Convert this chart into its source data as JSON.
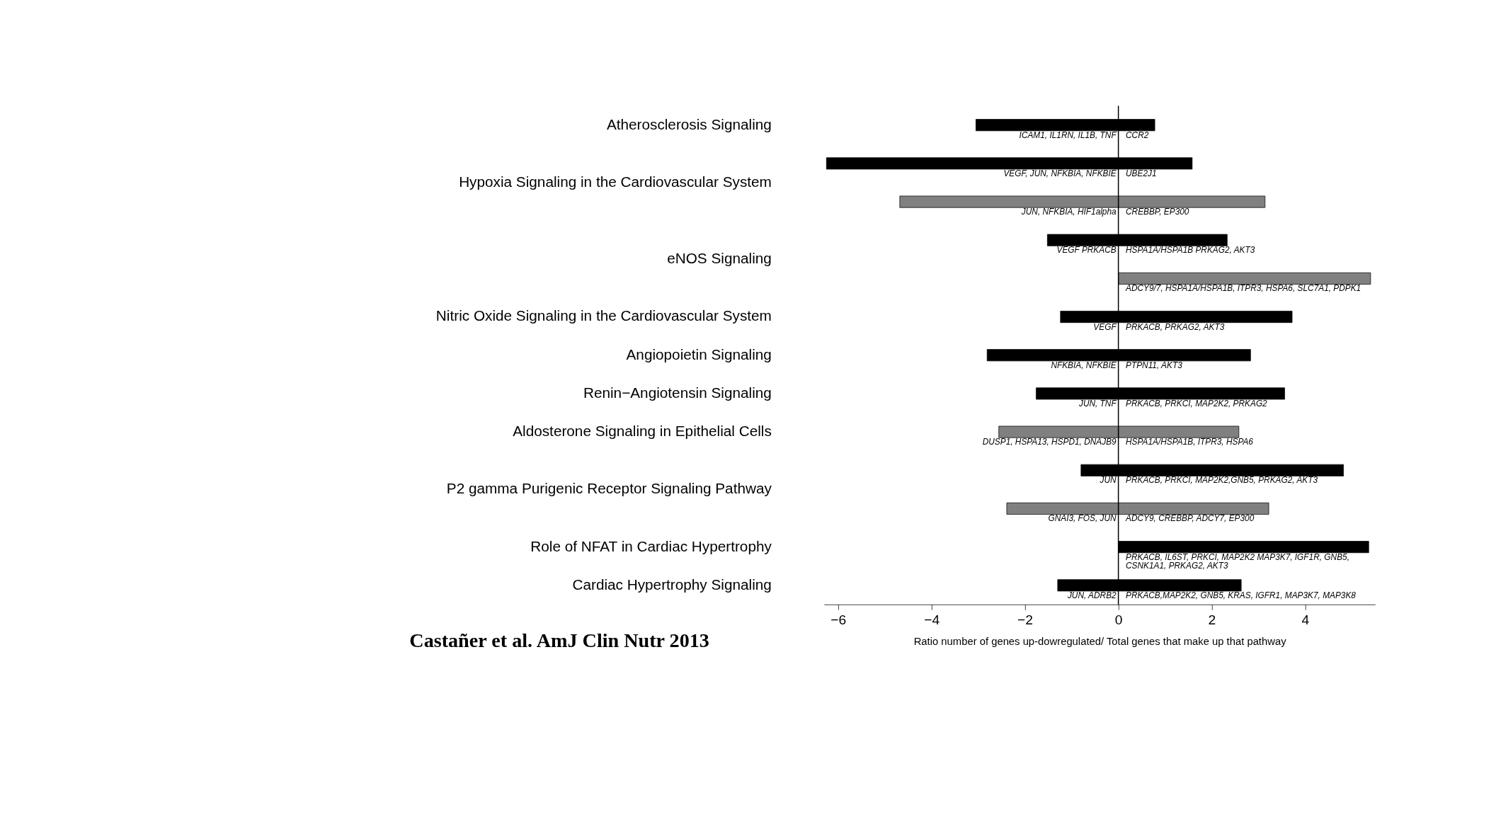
{
  "chart_data": {
    "type": "bar",
    "orientation": "horizontal",
    "stacked": true,
    "xlabel": "Ratio number of genes up-dowregulated/ Total genes that make up that pathway",
    "categories": [
      "Atherosclerosis Signaling",
      "Hypoxia Signaling in the Cardiovascular System",
      null,
      "eNOS Signaling",
      null,
      "Nitric Oxide Signaling in the Cardiovascular System",
      "Angiopoietin Signaling",
      "Renin−Angiotensin Signaling",
      "Aldosterone Signaling in Epithelial Cells",
      "P2 gamma Purigenic Receptor Signaling Pathway",
      null,
      "Role of NFAT in Cardiac Hypertrophy",
      "Cardiac Hypertrophy Signaling"
    ],
    "series": [
      {
        "values": [
          -3.05,
          -6.25,
          -4.68,
          -1.52,
          null,
          -1.24,
          -2.81,
          -1.76,
          -2.56,
          -0.8,
          -2.39,
          null,
          -1.3
        ],
        "colors": [
          "#000000",
          "#000000",
          "#808080",
          "#000000",
          "#808080",
          "#000000",
          "#000000",
          "#000000",
          "#808080",
          "#000000",
          "#808080",
          "#000000",
          "#000000"
        ],
        "value_labels": [
          "ICAM1, IL1RN, IL1B, TNF",
          "VEGF, JUN, NFKBIA, NFKBIE",
          "JUN, NFKBIA, HIF1alpha",
          "VEGF   PRKACB",
          null,
          "VEGF",
          "NFKBIA, NFKBIE",
          "JUN, TNF",
          "DUSP1, HSPA13,  HSPD1, DNAJB9",
          "JUN",
          "GNAI3, FOS, JUN",
          null,
          "JUN, ADRB2"
        ]
      },
      {
        "values": [
          0.78,
          1.58,
          3.14,
          2.33,
          5.4,
          3.72,
          2.83,
          3.56,
          2.58,
          4.82,
          3.22,
          5.36,
          2.63
        ],
        "colors": [
          "#000000",
          "#000000",
          "#808080",
          "#000000",
          "#808080",
          "#000000",
          "#000000",
          "#000000",
          "#808080",
          "#000000",
          "#808080",
          "#000000",
          "#000000"
        ],
        "value_labels": [
          "CCR2",
          "UBE2J1",
          "CREBBP, EP300",
          "HSPA1A/HSPA1B  PRKAG2, AKT3",
          "ADCY9/7, HSPA1A/HSPA1B, ITPR3, HSPA6, SLC7A1, PDPK1",
          "PRKACB, PRKAG2, AKT3",
          "PTPN11, AKT3",
          "PRKACB, PRKCI, MAP2K2, PRKAG2",
          "HSPA1A/HSPA1B, ITPR3, HSPA6",
          "PRKACB, PRKCI, MAP2K2,GNB5, PRKAG2, AKT3",
          "ADCY9, CREBBP, ADCY7, EP300",
          "PRKACB, IL6ST, PRKCI, MAP2K2 MAP3K7, IGF1R, GNB5,\nCSNK1A1, PRKAG2, AKT3",
          "PRKACB,MAP2K2,  GNB5, KRAS, IGFR1, MAP3K7, MAP3K8"
        ]
      }
    ],
    "xlim": [
      -6.3,
      5.5
    ],
    "xticks": [
      -6,
      -4,
      -2,
      0,
      2,
      4
    ],
    "grid": false,
    "ref_lines": [
      {
        "axis": "x",
        "value": 0,
        "color": "#000000"
      }
    ],
    "annotations": [
      "Castañer et al. AmJ Clin Nutr 2013"
    ]
  }
}
